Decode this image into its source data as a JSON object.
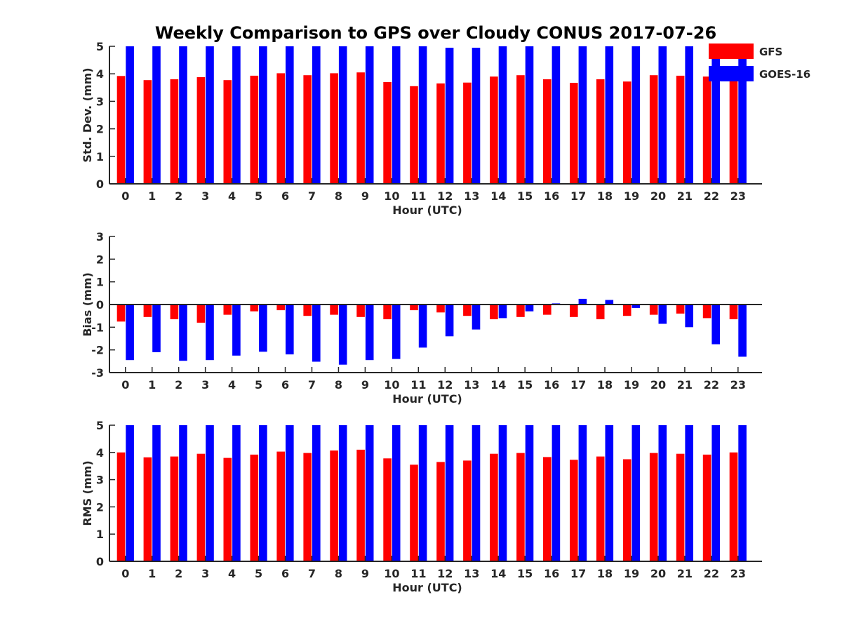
{
  "title": "Weekly Comparison to GPS over Cloudy CONUS 2017-07-26",
  "legend": [
    {
      "name": "GFS",
      "color": "#ff0000"
    },
    {
      "name": "GOES-16",
      "color": "#0000ff"
    }
  ],
  "chart_data": [
    {
      "type": "bar",
      "xlabel": "Hour (UTC)",
      "ylabel": "Std. Dev. (mm)",
      "ylim": [
        0,
        5
      ],
      "yticks": [
        "0",
        "1",
        "2",
        "3",
        "4",
        "5"
      ],
      "categories": [
        "0",
        "1",
        "2",
        "3",
        "4",
        "5",
        "6",
        "7",
        "8",
        "9",
        "10",
        "11",
        "12",
        "13",
        "14",
        "15",
        "16",
        "17",
        "18",
        "19",
        "20",
        "21",
        "22",
        "23"
      ],
      "series": [
        {
          "name": "GFS",
          "color": "#ff0000",
          "values": [
            3.92,
            3.77,
            3.8,
            3.88,
            3.77,
            3.93,
            4.02,
            3.95,
            4.02,
            4.05,
            3.7,
            3.55,
            3.65,
            3.68,
            3.9,
            3.95,
            3.8,
            3.67,
            3.8,
            3.72,
            3.95,
            3.93,
            3.9,
            3.93
          ]
        },
        {
          "name": "GOES-16",
          "color": "#0000ff",
          "values": [
            5,
            5,
            5,
            5,
            5,
            5,
            5,
            5,
            5,
            5,
            5,
            5,
            4.95,
            4.95,
            5,
            5,
            5,
            5,
            5,
            5,
            5,
            5,
            5,
            5
          ]
        }
      ],
      "legend_position": "top-right"
    },
    {
      "type": "bar",
      "xlabel": "Hour (UTC)",
      "ylabel": "Bias (mm)",
      "ylim": [
        -3,
        3
      ],
      "yticks": [
        "-3",
        "-2",
        "-1",
        "0",
        "1",
        "2",
        "3"
      ],
      "categories": [
        "0",
        "1",
        "2",
        "3",
        "4",
        "5",
        "6",
        "7",
        "8",
        "9",
        "10",
        "11",
        "12",
        "13",
        "14",
        "15",
        "16",
        "17",
        "18",
        "19",
        "20",
        "21",
        "22",
        "23"
      ],
      "series": [
        {
          "name": "GFS",
          "color": "#ff0000",
          "values": [
            -0.75,
            -0.55,
            -0.65,
            -0.8,
            -0.45,
            -0.3,
            -0.25,
            -0.5,
            -0.45,
            -0.55,
            -0.65,
            -0.25,
            -0.35,
            -0.5,
            -0.65,
            -0.55,
            -0.45,
            -0.55,
            -0.65,
            -0.5,
            -0.45,
            -0.4,
            -0.6,
            -0.65
          ]
        },
        {
          "name": "GOES-16",
          "color": "#0000ff",
          "values": [
            -2.45,
            -2.1,
            -2.48,
            -2.45,
            -2.25,
            -2.08,
            -2.2,
            -2.52,
            -2.65,
            -2.45,
            -2.4,
            -1.9,
            -1.4,
            -1.1,
            -0.6,
            -0.3,
            0.05,
            0.25,
            0.2,
            -0.15,
            -0.85,
            -1.0,
            -1.75,
            -2.3
          ]
        }
      ]
    },
    {
      "type": "bar",
      "xlabel": "Hour (UTC)",
      "ylabel": "RMS (mm)",
      "ylim": [
        0,
        5
      ],
      "yticks": [
        "0",
        "1",
        "2",
        "3",
        "4",
        "5"
      ],
      "categories": [
        "0",
        "1",
        "2",
        "3",
        "4",
        "5",
        "6",
        "7",
        "8",
        "9",
        "10",
        "11",
        "12",
        "13",
        "14",
        "15",
        "16",
        "17",
        "18",
        "19",
        "20",
        "21",
        "22",
        "23"
      ],
      "series": [
        {
          "name": "GFS",
          "color": "#ff0000",
          "values": [
            4.0,
            3.82,
            3.85,
            3.95,
            3.8,
            3.92,
            4.03,
            3.98,
            4.07,
            4.1,
            3.78,
            3.55,
            3.65,
            3.7,
            3.95,
            3.98,
            3.83,
            3.73,
            3.85,
            3.75,
            3.98,
            3.95,
            3.92,
            4.0
          ]
        },
        {
          "name": "GOES-16",
          "color": "#0000ff",
          "values": [
            5,
            5,
            5,
            5,
            5,
            5,
            5,
            5,
            5,
            5,
            5,
            5,
            5,
            5,
            5,
            5,
            5,
            5,
            5,
            5,
            5,
            5,
            5,
            5
          ]
        }
      ]
    }
  ]
}
